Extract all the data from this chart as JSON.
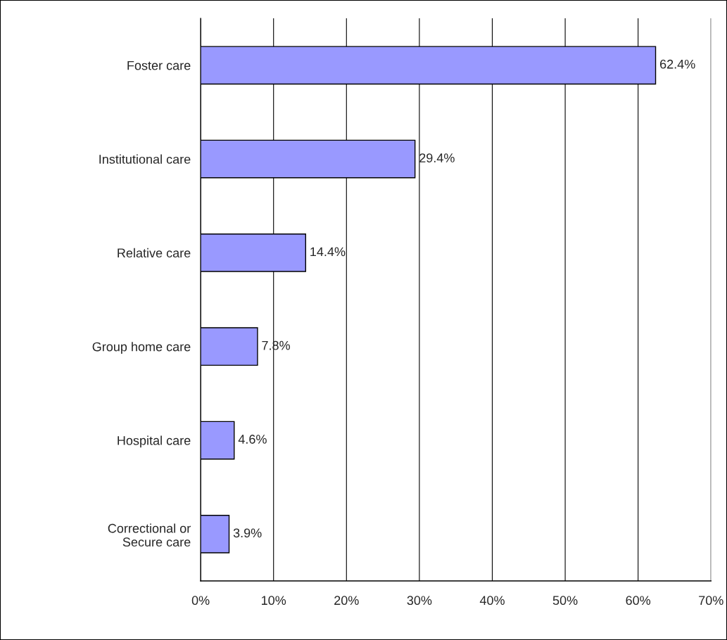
{
  "chart_data": {
    "type": "bar",
    "orientation": "horizontal",
    "categories": [
      "Foster care",
      "Institutional care",
      "Relative care",
      "Group home care",
      "Hospital care",
      "Correctional or\nSecure care"
    ],
    "values": [
      62.4,
      29.4,
      14.4,
      7.8,
      4.6,
      3.9
    ],
    "value_labels": [
      "62.4%",
      "29.4%",
      "14.4%",
      "7.8%",
      "4.6%",
      "3.9%"
    ],
    "color": "#9999ff",
    "xlim": [
      0,
      70
    ],
    "xticks": [
      {
        "value": 0,
        "label": "0%"
      },
      {
        "value": 10,
        "label": "10%"
      },
      {
        "value": 20,
        "label": "20%"
      },
      {
        "value": 30,
        "label": "30%"
      },
      {
        "value": 40,
        "label": "40%"
      },
      {
        "value": 50,
        "label": "50%"
      },
      {
        "value": 60,
        "label": "60%"
      },
      {
        "value": 70,
        "label": "70%"
      }
    ],
    "grid": "x",
    "legend": false
  }
}
